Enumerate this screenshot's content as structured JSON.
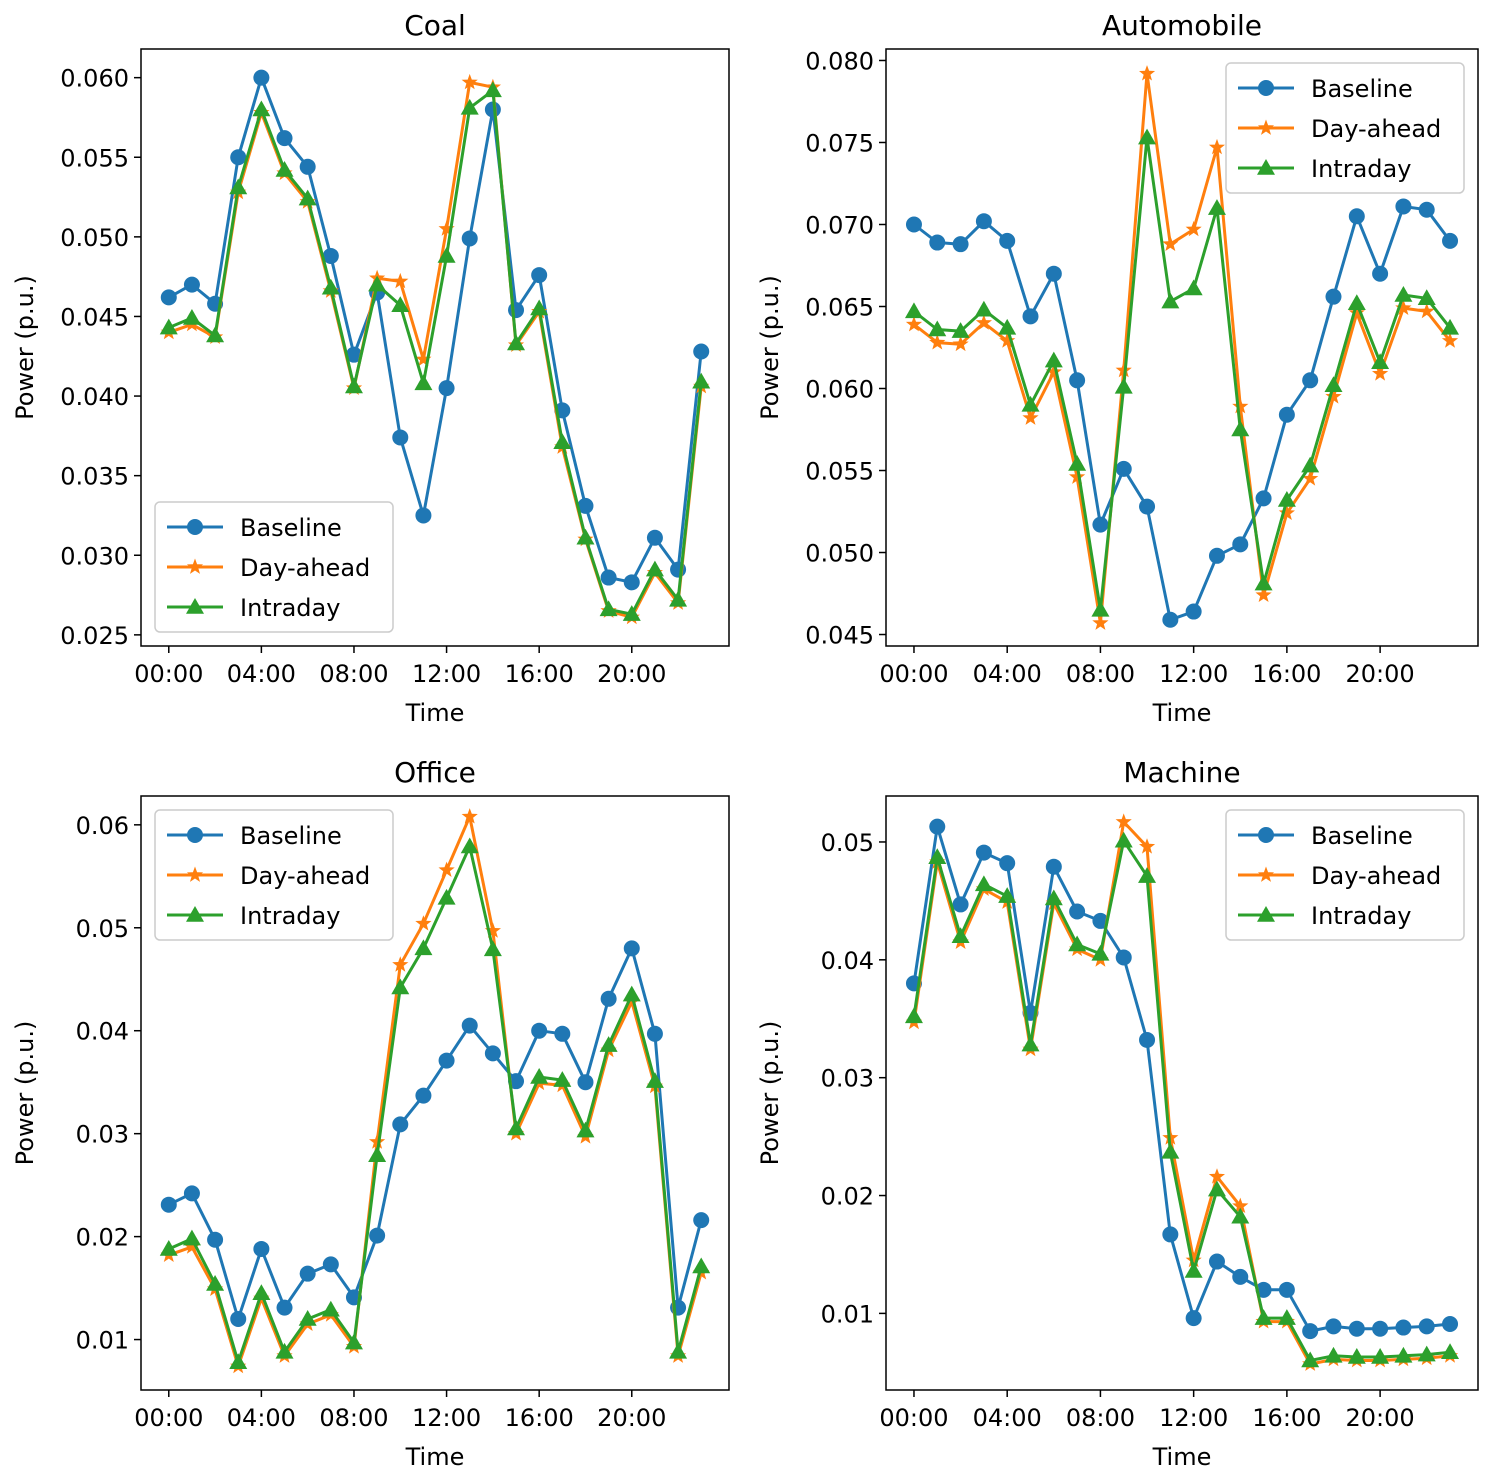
{
  "figure": {
    "series_names": [
      "Baseline",
      "Day-ahead",
      "Intraday"
    ]
  },
  "colors": {
    "Baseline": "#1f77b4",
    "Day-ahead": "#ff7f0e",
    "Intraday": "#2ca02c"
  },
  "chart_data": [
    {
      "type": "line",
      "title": "Coal",
      "xlabel": "Time",
      "ylabel": "Power (p.u.)",
      "x": [
        0,
        1,
        2,
        3,
        4,
        5,
        6,
        7,
        8,
        9,
        10,
        11,
        12,
        13,
        14,
        15,
        16,
        17,
        18,
        19,
        20,
        21,
        22,
        23
      ],
      "xlim": [
        -1.2,
        24.2
      ],
      "xticks": [
        0,
        4,
        8,
        12,
        16,
        20
      ],
      "xtick_labels": [
        "00:00",
        "04:00",
        "08:00",
        "12:00",
        "16:00",
        "20:00"
      ],
      "ylim": [
        0.0243,
        0.0618
      ],
      "yticks": [
        0.025,
        0.03,
        0.035,
        0.04,
        0.045,
        0.05,
        0.055,
        0.06
      ],
      "ytick_labels": [
        "0.025",
        "0.030",
        "0.035",
        "0.040",
        "0.045",
        "0.050",
        "0.055",
        "0.060"
      ],
      "legend": "bottom-left",
      "series": [
        {
          "name": "Baseline",
          "marker": "circle",
          "values": [
            0.0462,
            0.047,
            0.0458,
            0.055,
            0.06,
            0.0562,
            0.0544,
            0.0488,
            0.0426,
            0.0465,
            0.0374,
            0.0325,
            0.0405,
            0.0499,
            0.058,
            0.0454,
            0.0476,
            0.0391,
            0.0331,
            0.0286,
            0.0283,
            0.0311,
            0.0291,
            0.0428
          ]
        },
        {
          "name": "Day-ahead",
          "marker": "star",
          "values": [
            0.044,
            0.0445,
            0.0437,
            0.0528,
            0.0578,
            0.054,
            0.0522,
            0.0466,
            0.0405,
            0.0474,
            0.0472,
            0.0423,
            0.0505,
            0.0597,
            0.0594,
            0.0432,
            0.0453,
            0.0368,
            0.031,
            0.0265,
            0.0261,
            0.0289,
            0.027,
            0.0406
          ]
        },
        {
          "name": "Intraday",
          "marker": "triangle",
          "values": [
            0.0443,
            0.0449,
            0.0438,
            0.0531,
            0.058,
            0.0542,
            0.0524,
            0.0468,
            0.0406,
            0.047,
            0.0457,
            0.0408,
            0.0488,
            0.0581,
            0.0592,
            0.0433,
            0.0455,
            0.0371,
            0.0311,
            0.0266,
            0.0263,
            0.0291,
            0.0272,
            0.0409
          ]
        }
      ]
    },
    {
      "type": "line",
      "title": "Automobile",
      "xlabel": "Time",
      "ylabel": "Power (p.u.)",
      "x": [
        0,
        1,
        2,
        3,
        4,
        5,
        6,
        7,
        8,
        9,
        10,
        11,
        12,
        13,
        14,
        15,
        16,
        17,
        18,
        19,
        20,
        21,
        22,
        23
      ],
      "xlim": [
        -1.2,
        24.2
      ],
      "xticks": [
        0,
        4,
        8,
        12,
        16,
        20
      ],
      "xtick_labels": [
        "00:00",
        "04:00",
        "08:00",
        "12:00",
        "16:00",
        "20:00"
      ],
      "ylim": [
        0.0443,
        0.0807
      ],
      "yticks": [
        0.045,
        0.05,
        0.055,
        0.06,
        0.065,
        0.07,
        0.075,
        0.08
      ],
      "ytick_labels": [
        "0.045",
        "0.050",
        "0.055",
        "0.060",
        "0.065",
        "0.070",
        "0.075",
        "0.080"
      ],
      "legend": "top-right",
      "series": [
        {
          "name": "Baseline",
          "marker": "circle",
          "values": [
            0.07,
            0.0689,
            0.0688,
            0.0702,
            0.069,
            0.0644,
            0.067,
            0.0605,
            0.0517,
            0.0551,
            0.0528,
            0.0459,
            0.0464,
            0.0498,
            0.0505,
            0.0533,
            0.0584,
            0.0605,
            0.0656,
            0.0705,
            0.067,
            0.0711,
            0.0709,
            0.069
          ]
        },
        {
          "name": "Day-ahead",
          "marker": "star",
          "values": [
            0.0639,
            0.0628,
            0.0627,
            0.064,
            0.0629,
            0.0582,
            0.061,
            0.0546,
            0.0457,
            0.0611,
            0.0792,
            0.0688,
            0.0697,
            0.0747,
            0.0589,
            0.0474,
            0.0524,
            0.0545,
            0.0595,
            0.0646,
            0.0609,
            0.0649,
            0.0647,
            0.0629
          ]
        },
        {
          "name": "Intraday",
          "marker": "triangle",
          "values": [
            0.0647,
            0.0636,
            0.0635,
            0.0648,
            0.0637,
            0.059,
            0.0617,
            0.0554,
            0.0465,
            0.0601,
            0.0753,
            0.0653,
            0.0661,
            0.071,
            0.0575,
            0.0481,
            0.0532,
            0.0553,
            0.0602,
            0.0652,
            0.0616,
            0.0657,
            0.0655,
            0.0637
          ]
        }
      ]
    },
    {
      "type": "line",
      "title": "Office",
      "xlabel": "Time",
      "ylabel": "Power (p.u.)",
      "x": [
        0,
        1,
        2,
        3,
        4,
        5,
        6,
        7,
        8,
        9,
        10,
        11,
        12,
        13,
        14,
        15,
        16,
        17,
        18,
        19,
        20,
        21,
        22,
        23
      ],
      "xlim": [
        -1.2,
        24.2
      ],
      "xticks": [
        0,
        4,
        8,
        12,
        16,
        20
      ],
      "xtick_labels": [
        "00:00",
        "04:00",
        "08:00",
        "12:00",
        "16:00",
        "20:00"
      ],
      "ylim": [
        0.0051,
        0.0628
      ],
      "yticks": [
        0.01,
        0.02,
        0.03,
        0.04,
        0.05,
        0.06
      ],
      "ytick_labels": [
        "0.01",
        "0.02",
        "0.03",
        "0.04",
        "0.05",
        "0.06"
      ],
      "legend": "top-left",
      "series": [
        {
          "name": "Baseline",
          "marker": "circle",
          "values": [
            0.0231,
            0.0242,
            0.0197,
            0.012,
            0.0188,
            0.0131,
            0.0164,
            0.0173,
            0.0141,
            0.0201,
            0.0309,
            0.0337,
            0.0371,
            0.0405,
            0.0378,
            0.0351,
            0.04,
            0.0397,
            0.035,
            0.0431,
            0.048,
            0.0397,
            0.0131,
            0.0216
          ]
        },
        {
          "name": "Day-ahead",
          "marker": "star",
          "values": [
            0.0182,
            0.019,
            0.0149,
            0.0074,
            0.014,
            0.0084,
            0.0115,
            0.0124,
            0.0093,
            0.0292,
            0.0464,
            0.0504,
            0.0556,
            0.0608,
            0.0497,
            0.03,
            0.0349,
            0.0347,
            0.0297,
            0.0381,
            0.0428,
            0.0346,
            0.0084,
            0.0165
          ]
        },
        {
          "name": "Intraday",
          "marker": "triangle",
          "values": [
            0.0188,
            0.0198,
            0.0154,
            0.0078,
            0.0145,
            0.0088,
            0.012,
            0.0129,
            0.0097,
            0.0279,
            0.0442,
            0.048,
            0.0529,
            0.0579,
            0.0479,
            0.0305,
            0.0355,
            0.0352,
            0.0303,
            0.0386,
            0.0435,
            0.0351,
            0.0088,
            0.0171
          ]
        }
      ]
    },
    {
      "type": "line",
      "title": "Machine",
      "xlabel": "Time",
      "ylabel": "Power (p.u.)",
      "x": [
        0,
        1,
        2,
        3,
        4,
        5,
        6,
        7,
        8,
        9,
        10,
        11,
        12,
        13,
        14,
        15,
        16,
        17,
        18,
        19,
        20,
        21,
        22,
        23
      ],
      "xlim": [
        -1.2,
        24.2
      ],
      "xticks": [
        0,
        4,
        8,
        12,
        16,
        20
      ],
      "xtick_labels": [
        "00:00",
        "04:00",
        "08:00",
        "12:00",
        "16:00",
        "20:00"
      ],
      "ylim": [
        0.0035,
        0.0539
      ],
      "yticks": [
        0.01,
        0.02,
        0.03,
        0.04,
        0.05
      ],
      "ytick_labels": [
        "0.01",
        "0.02",
        "0.03",
        "0.04",
        "0.05"
      ],
      "legend": "top-right",
      "series": [
        {
          "name": "Baseline",
          "marker": "circle",
          "values": [
            0.038,
            0.0513,
            0.0447,
            0.0491,
            0.0482,
            0.0355,
            0.0479,
            0.0441,
            0.0433,
            0.0402,
            0.0332,
            0.0167,
            0.0096,
            0.0144,
            0.0131,
            0.012,
            0.012,
            0.0085,
            0.0089,
            0.0087,
            0.0087,
            0.0088,
            0.0089,
            0.0091
          ]
        },
        {
          "name": "Day-ahead",
          "marker": "star",
          "values": [
            0.0347,
            0.0483,
            0.0415,
            0.046,
            0.0449,
            0.0324,
            0.0448,
            0.0409,
            0.04,
            0.0517,
            0.0496,
            0.0249,
            0.0145,
            0.0216,
            0.0191,
            0.0093,
            0.0093,
            0.0057,
            0.0061,
            0.006,
            0.006,
            0.0061,
            0.0062,
            0.0064
          ]
        },
        {
          "name": "Intraday",
          "marker": "triangle",
          "values": [
            0.0352,
            0.0487,
            0.042,
            0.0464,
            0.0454,
            0.0328,
            0.0452,
            0.0413,
            0.0405,
            0.0501,
            0.0471,
            0.0237,
            0.0136,
            0.0205,
            0.0182,
            0.0096,
            0.0096,
            0.006,
            0.0064,
            0.0063,
            0.0063,
            0.0064,
            0.0065,
            0.0067
          ]
        }
      ]
    }
  ]
}
